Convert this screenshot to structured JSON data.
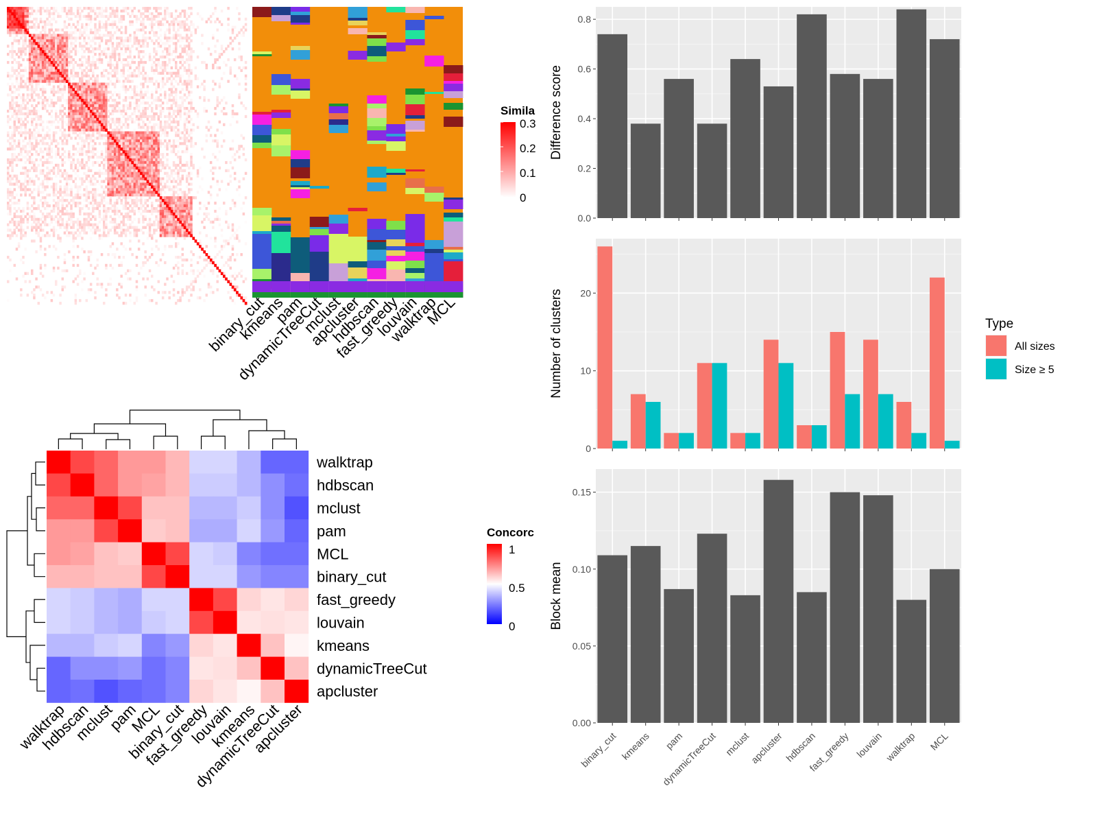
{
  "chart_data": [
    {
      "type": "heatmap",
      "subtype": "similarity-matrix",
      "legend_title": "Simila",
      "legend_ticks": [
        "0.3",
        "0.2",
        "0.1",
        "0"
      ],
      "scale": {
        "min": 0,
        "max": 0.33,
        "colors": [
          "#ffffff",
          "#ff0000"
        ]
      }
    },
    {
      "type": "heatmap",
      "subtype": "cluster-membership",
      "columns": [
        "binary_cut",
        "kmeans",
        "pam",
        "dynamicTreeCut",
        "mclust",
        "apcluster",
        "hdbscan",
        "fast_greedy",
        "louvain",
        "walktrap",
        "MCL"
      ],
      "background_color": "#F28E0A"
    },
    {
      "type": "heatmap",
      "subtype": "concordance-matrix",
      "legend_title": "Concorc",
      "legend_ticks": [
        "1",
        "0.5",
        "0"
      ],
      "scale": {
        "min": 0,
        "max": 1,
        "colors": [
          "#0000ff",
          "#ffffff",
          "#ff0000"
        ]
      },
      "rows": [
        "walktrap",
        "hdbscan",
        "mclust",
        "pam",
        "MCL",
        "binary_cut",
        "fast_greedy",
        "louvain",
        "kmeans",
        "dynamicTreeCut",
        "apcluster"
      ],
      "columns": [
        "walktrap",
        "hdbscan",
        "mclust",
        "pam",
        "MCL",
        "binary_cut",
        "fast_greedy",
        "louvain",
        "kmeans",
        "dynamicTreeCut",
        "apcluster"
      ],
      "values": [
        [
          1.0,
          0.86,
          0.8,
          0.7,
          0.7,
          0.64,
          0.42,
          0.42,
          0.36,
          0.2,
          0.2
        ],
        [
          0.86,
          1.0,
          0.8,
          0.7,
          0.68,
          0.64,
          0.4,
          0.4,
          0.36,
          0.28,
          0.22
        ],
        [
          0.8,
          0.8,
          1.0,
          0.86,
          0.62,
          0.62,
          0.36,
          0.36,
          0.4,
          0.28,
          0.16
        ],
        [
          0.7,
          0.7,
          0.86,
          1.0,
          0.6,
          0.62,
          0.34,
          0.34,
          0.42,
          0.3,
          0.2
        ],
        [
          0.7,
          0.68,
          0.62,
          0.6,
          1.0,
          0.86,
          0.42,
          0.4,
          0.26,
          0.22,
          0.22
        ],
        [
          0.64,
          0.64,
          0.62,
          0.62,
          0.86,
          1.0,
          0.42,
          0.42,
          0.3,
          0.26,
          0.26
        ],
        [
          0.42,
          0.4,
          0.36,
          0.34,
          0.42,
          0.42,
          1.0,
          0.86,
          0.58,
          0.55,
          0.58
        ],
        [
          0.42,
          0.4,
          0.36,
          0.34,
          0.4,
          0.42,
          0.86,
          1.0,
          0.55,
          0.56,
          0.55
        ],
        [
          0.36,
          0.36,
          0.4,
          0.42,
          0.26,
          0.3,
          0.58,
          0.55,
          1.0,
          0.62,
          0.52
        ],
        [
          0.2,
          0.28,
          0.28,
          0.3,
          0.22,
          0.26,
          0.55,
          0.56,
          0.62,
          1.0,
          0.62
        ],
        [
          0.2,
          0.22,
          0.16,
          0.2,
          0.22,
          0.26,
          0.58,
          0.55,
          0.52,
          0.62,
          1.0
        ]
      ]
    },
    {
      "type": "bar",
      "categories": [
        "binary_cut",
        "kmeans",
        "pam",
        "dynamicTreeCut",
        "mclust",
        "apcluster",
        "hdbscan",
        "fast_greedy",
        "louvain",
        "walktrap",
        "MCL"
      ],
      "values": [
        0.74,
        0.38,
        0.56,
        0.38,
        0.64,
        0.53,
        0.82,
        0.58,
        0.56,
        0.84,
        0.72
      ],
      "ylabel": "Difference score",
      "ylim": [
        0,
        0.85
      ],
      "yticks": [
        "0.0",
        "0.2",
        "0.4",
        "0.6",
        "0.8"
      ],
      "grid": true,
      "bar_color": "#595959"
    },
    {
      "type": "bar",
      "categories": [
        "binary_cut",
        "kmeans",
        "pam",
        "dynamicTreeCut",
        "mclust",
        "apcluster",
        "hdbscan",
        "fast_greedy",
        "louvain",
        "walktrap",
        "MCL"
      ],
      "series": [
        {
          "name": "All sizes",
          "values": [
            26,
            7,
            2,
            11,
            2,
            14,
            3,
            15,
            14,
            6,
            22
          ],
          "color": "#F8766D"
        },
        {
          "name": "Size ≥ 5",
          "values": [
            1,
            6,
            2,
            11,
            2,
            11,
            3,
            7,
            7,
            2,
            1
          ],
          "color": "#00BFC4"
        }
      ],
      "ylabel": "Number of clusters",
      "ylim": [
        0,
        27
      ],
      "yticks": [
        "0",
        "10",
        "20"
      ],
      "legend_title": "Type",
      "legend_position": "right",
      "grid": true
    },
    {
      "type": "bar",
      "categories": [
        "binary_cut",
        "kmeans",
        "pam",
        "dynamicTreeCut",
        "mclust",
        "apcluster",
        "hdbscan",
        "fast_greedy",
        "louvain",
        "walktrap",
        "MCL"
      ],
      "values": [
        0.109,
        0.115,
        0.087,
        0.123,
        0.083,
        0.158,
        0.085,
        0.15,
        0.148,
        0.08,
        0.1
      ],
      "ylabel": "Block mean",
      "ylim": [
        0,
        0.165
      ],
      "yticks": [
        "0.00",
        "0.05",
        "0.10",
        "0.15"
      ],
      "grid": true,
      "bar_color": "#595959"
    }
  ]
}
